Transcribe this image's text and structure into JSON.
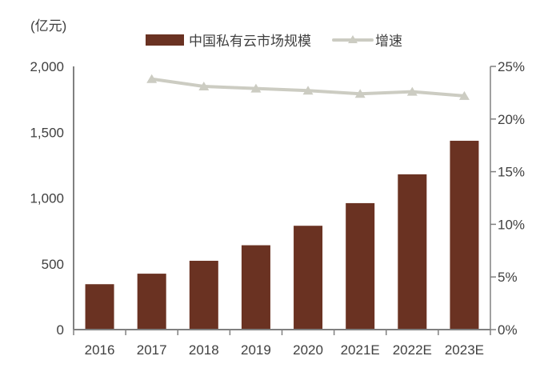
{
  "chart": {
    "unit_label": "(亿元)",
    "text_color": "#404040",
    "axis_color": "#808080"
  },
  "chart_data": {
    "type": "bar",
    "title": "",
    "categories": [
      "2016",
      "2017",
      "2018",
      "2019",
      "2020",
      "2021E",
      "2022E",
      "2023E"
    ],
    "series": [
      {
        "name": "中国私有云市场规模",
        "type": "bar",
        "axis": "left",
        "unit": "亿元",
        "color": "#6A3222",
        "values": [
          345,
          425,
          523,
          641,
          789,
          961,
          1180,
          1435
        ]
      },
      {
        "name": "增速",
        "type": "line",
        "axis": "right",
        "unit": "%",
        "color": "#CCCCC2",
        "values": [
          null,
          23.8,
          23.1,
          22.9,
          22.7,
          22.4,
          22.6,
          22.2
        ]
      }
    ],
    "left_axis": {
      "label": "(亿元)",
      "min": 0,
      "max": 2000,
      "tick_values": [
        0,
        500,
        1000,
        1500,
        2000
      ],
      "tick_labels": [
        "0",
        "500",
        "1,000",
        "1,500",
        "2,000"
      ]
    },
    "right_axis": {
      "min": 0,
      "max": 25,
      "tick_values": [
        0,
        5,
        10,
        15,
        20,
        25
      ],
      "tick_labels": [
        "0%",
        "5%",
        "10%",
        "15%",
        "20%",
        "25%"
      ]
    },
    "grid": false,
    "legend_position": "top"
  }
}
